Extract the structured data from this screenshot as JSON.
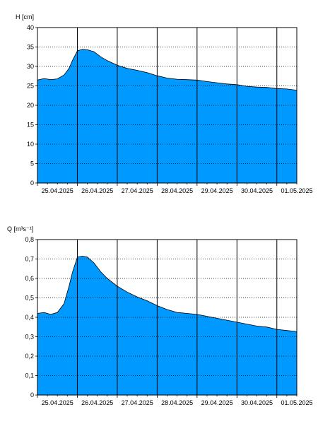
{
  "chart_data": [
    {
      "type": "area",
      "title": "",
      "ylabel": "H [cm]",
      "xlabel": "",
      "ylim": [
        0,
        40
      ],
      "yticks": [
        "0",
        "5",
        "10",
        "15",
        "20",
        "25",
        "30",
        "35",
        "40"
      ],
      "xlim": [
        "2025-04-25T00:00",
        "2025-05-01T12:00"
      ],
      "x_tick_labels": [
        "25.04.2025",
        "26.04.2025",
        "27.04.2025",
        "28.04.2025",
        "29.04.2025",
        "30.04.2025",
        "01.05.2025"
      ],
      "grid": true,
      "fill_color": "#0099ff",
      "series": [
        {
          "x": [
            "2025-04-25T00:00",
            "2025-04-25T04:00",
            "2025-04-25T08:00",
            "2025-04-25T12:00",
            "2025-04-25T16:00",
            "2025-04-25T19:00",
            "2025-04-25T21:00",
            "2025-04-26T00:00",
            "2025-04-26T03:00",
            "2025-04-26T06:00",
            "2025-04-26T10:00",
            "2025-04-26T14:00",
            "2025-04-26T18:00",
            "2025-04-27T00:00",
            "2025-04-27T06:00",
            "2025-04-27T12:00",
            "2025-04-27T18:00",
            "2025-04-28T00:00",
            "2025-04-28T06:00",
            "2025-04-28T12:00",
            "2025-04-28T18:00",
            "2025-04-29T00:00",
            "2025-04-29T06:00",
            "2025-04-29T12:00",
            "2025-04-29T18:00",
            "2025-04-30T00:00",
            "2025-04-30T06:00",
            "2025-04-30T12:00",
            "2025-04-30T18:00",
            "2025-05-01T00:00",
            "2025-05-01T06:00",
            "2025-05-01T12:00"
          ],
          "values": [
            26.5,
            26.9,
            26.6,
            26.8,
            27.8,
            29.5,
            31.5,
            34.0,
            34.4,
            34.3,
            33.8,
            32.5,
            31.5,
            30.3,
            29.5,
            29.0,
            28.4,
            27.6,
            27.0,
            26.7,
            26.6,
            26.5,
            26.1,
            25.8,
            25.5,
            25.3,
            24.9,
            24.7,
            24.6,
            24.3,
            24.2,
            23.9
          ]
        }
      ]
    },
    {
      "type": "area",
      "title": "",
      "ylabel": "Q [m³s⁻¹]",
      "xlabel": "",
      "ylim": [
        0,
        0.8
      ],
      "yticks": [
        "0",
        "0,1",
        "0,2",
        "0,3",
        "0,4",
        "0,5",
        "0,6",
        "0,7",
        "0,8"
      ],
      "xlim": [
        "2025-04-25T00:00",
        "2025-05-01T12:00"
      ],
      "x_tick_labels": [
        "25.04.2025",
        "26.04.2025",
        "27.04.2025",
        "28.04.2025",
        "29.04.2025",
        "30.04.2025",
        "01.05.2025"
      ],
      "grid": true,
      "fill_color": "#0099ff",
      "series": [
        {
          "x": [
            "2025-04-25T00:00",
            "2025-04-25T04:00",
            "2025-04-25T08:00",
            "2025-04-25T12:00",
            "2025-04-25T16:00",
            "2025-04-25T19:00",
            "2025-04-25T21:00",
            "2025-04-26T00:00",
            "2025-04-26T03:00",
            "2025-04-26T06:00",
            "2025-04-26T10:00",
            "2025-04-26T14:00",
            "2025-04-26T18:00",
            "2025-04-27T00:00",
            "2025-04-27T06:00",
            "2025-04-27T12:00",
            "2025-04-27T18:00",
            "2025-04-28T00:00",
            "2025-04-28T06:00",
            "2025-04-28T12:00",
            "2025-04-28T18:00",
            "2025-04-29T00:00",
            "2025-04-29T06:00",
            "2025-04-29T12:00",
            "2025-04-29T18:00",
            "2025-04-30T00:00",
            "2025-04-30T06:00",
            "2025-04-30T12:00",
            "2025-04-30T18:00",
            "2025-05-01T00:00",
            "2025-05-01T06:00",
            "2025-05-01T12:00"
          ],
          "values": [
            0.42,
            0.425,
            0.415,
            0.425,
            0.47,
            0.56,
            0.63,
            0.71,
            0.715,
            0.71,
            0.68,
            0.635,
            0.6,
            0.56,
            0.53,
            0.505,
            0.485,
            0.46,
            0.44,
            0.425,
            0.42,
            0.415,
            0.405,
            0.395,
            0.385,
            0.375,
            0.365,
            0.355,
            0.35,
            0.338,
            0.332,
            0.327
          ]
        }
      ]
    }
  ]
}
